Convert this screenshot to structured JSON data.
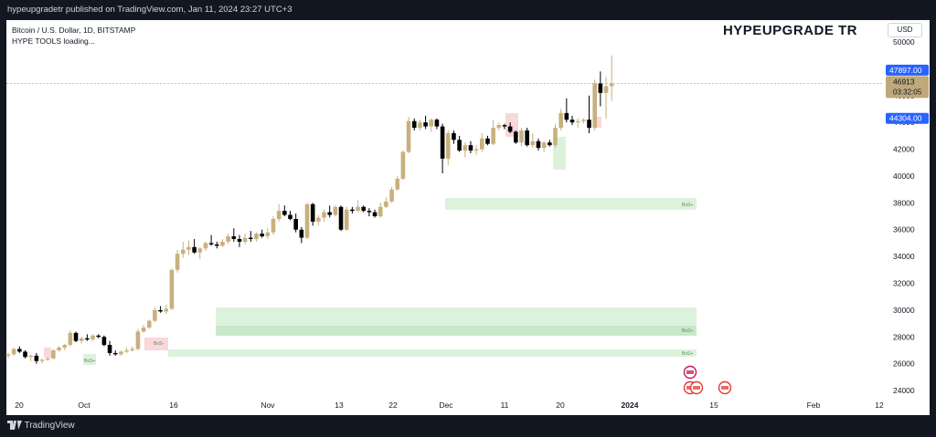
{
  "header": {
    "published": "hypeupgradetr published on TradingView.com, Jan 11, 2024 23:27 UTC+3"
  },
  "legend": {
    "symbol": "Bitcoin / U.S. Dollar, 1D, BITSTAMP",
    "indicator": "HYPE TOOLS loading..."
  },
  "brand": "HYPEUPGRADE TR",
  "currency": "USD",
  "footer": {
    "logo_text": "TradingView"
  },
  "colors": {
    "up": "#c8b07e",
    "down": "#000000",
    "zone_green": "#d7f0d7",
    "zone_red": "#f9d0d3",
    "price_badge": "#bfa97a",
    "blue_badge": "#2962ff"
  },
  "chart_data": {
    "type": "candlestick",
    "ylim": [
      23500,
      51000
    ],
    "yticks": [
      "50000",
      "48000",
      "46000",
      "44000",
      "42000",
      "40000",
      "38000",
      "36000",
      "34000",
      "32000",
      "30000",
      "28000",
      "26000",
      "24000"
    ],
    "xticks": [
      "20",
      "Oct",
      "16",
      "Nov",
      "13",
      "22",
      "Dec",
      "11",
      "20",
      "2024",
      "15",
      "Feb",
      "12"
    ],
    "price_labels": [
      {
        "value": 47897,
        "text": "47897.00",
        "style": "blue"
      },
      {
        "value": 46913,
        "text": "46913",
        "sub": "03:32:05",
        "style": "gold"
      },
      {
        "value": 44304,
        "text": "44304.00",
        "style": "blue"
      }
    ],
    "zone_labels": [
      "BoS+",
      "BoS+",
      "BoS+",
      "BoS-",
      "BoS+"
    ],
    "series": [
      {
        "o": 26600,
        "h": 26800,
        "l": 26400,
        "c": 26700
      },
      {
        "o": 26700,
        "h": 27200,
        "l": 26600,
        "c": 27100
      },
      {
        "o": 27100,
        "h": 27300,
        "l": 26800,
        "c": 26900
      },
      {
        "o": 26900,
        "h": 27000,
        "l": 26400,
        "c": 26500
      },
      {
        "o": 26500,
        "h": 26700,
        "l": 26200,
        "c": 26600
      },
      {
        "o": 26600,
        "h": 26800,
        "l": 26000,
        "c": 26200
      },
      {
        "o": 26200,
        "h": 26400,
        "l": 26000,
        "c": 26300
      },
      {
        "o": 26300,
        "h": 26500,
        "l": 26200,
        "c": 26400
      },
      {
        "o": 26400,
        "h": 27100,
        "l": 26300,
        "c": 27000
      },
      {
        "o": 27000,
        "h": 27300,
        "l": 26900,
        "c": 27200
      },
      {
        "o": 27200,
        "h": 27500,
        "l": 27000,
        "c": 27400
      },
      {
        "o": 27400,
        "h": 28500,
        "l": 27300,
        "c": 28300
      },
      {
        "o": 28300,
        "h": 28400,
        "l": 27600,
        "c": 27700
      },
      {
        "o": 27700,
        "h": 28000,
        "l": 27500,
        "c": 27900
      },
      {
        "o": 27900,
        "h": 28200,
        "l": 27700,
        "c": 27800
      },
      {
        "o": 27800,
        "h": 28200,
        "l": 27700,
        "c": 28100
      },
      {
        "o": 28100,
        "h": 28200,
        "l": 27900,
        "c": 28000
      },
      {
        "o": 28000,
        "h": 28100,
        "l": 27300,
        "c": 27400
      },
      {
        "o": 27400,
        "h": 27700,
        "l": 26600,
        "c": 26800
      },
      {
        "o": 26800,
        "h": 27000,
        "l": 26600,
        "c": 26700
      },
      {
        "o": 26700,
        "h": 27000,
        "l": 26600,
        "c": 26900
      },
      {
        "o": 26900,
        "h": 27200,
        "l": 26800,
        "c": 27000
      },
      {
        "o": 27000,
        "h": 27300,
        "l": 26900,
        "c": 27100
      },
      {
        "o": 27100,
        "h": 28600,
        "l": 27000,
        "c": 28400
      },
      {
        "o": 28400,
        "h": 28900,
        "l": 28300,
        "c": 28700
      },
      {
        "o": 28700,
        "h": 29300,
        "l": 28600,
        "c": 29200
      },
      {
        "o": 29200,
        "h": 30200,
        "l": 29100,
        "c": 30000
      },
      {
        "o": 30000,
        "h": 30300,
        "l": 29800,
        "c": 29900
      },
      {
        "o": 29900,
        "h": 30400,
        "l": 29700,
        "c": 30100
      },
      {
        "o": 30100,
        "h": 33100,
        "l": 30000,
        "c": 33000
      },
      {
        "o": 33000,
        "h": 34500,
        "l": 32800,
        "c": 34200
      },
      {
        "o": 34200,
        "h": 35100,
        "l": 33900,
        "c": 34500
      },
      {
        "o": 34500,
        "h": 35200,
        "l": 34100,
        "c": 34700
      },
      {
        "o": 34700,
        "h": 35300,
        "l": 34200,
        "c": 34300
      },
      {
        "o": 34300,
        "h": 34700,
        "l": 33800,
        "c": 34600
      },
      {
        "o": 34600,
        "h": 35100,
        "l": 34400,
        "c": 35000
      },
      {
        "o": 35000,
        "h": 35600,
        "l": 34800,
        "c": 34900
      },
      {
        "o": 34900,
        "h": 35100,
        "l": 34600,
        "c": 34800
      },
      {
        "o": 34800,
        "h": 35300,
        "l": 34700,
        "c": 35100
      },
      {
        "o": 35100,
        "h": 35700,
        "l": 34900,
        "c": 35500
      },
      {
        "o": 35500,
        "h": 36100,
        "l": 35100,
        "c": 35300
      },
      {
        "o": 35300,
        "h": 35600,
        "l": 34700,
        "c": 35100
      },
      {
        "o": 35100,
        "h": 35700,
        "l": 34900,
        "c": 35400
      },
      {
        "o": 35400,
        "h": 35900,
        "l": 35100,
        "c": 35300
      },
      {
        "o": 35300,
        "h": 35800,
        "l": 35100,
        "c": 35700
      },
      {
        "o": 35700,
        "h": 36000,
        "l": 35400,
        "c": 35500
      },
      {
        "o": 35500,
        "h": 36100,
        "l": 35300,
        "c": 35800
      },
      {
        "o": 35800,
        "h": 37000,
        "l": 35600,
        "c": 36800
      },
      {
        "o": 36800,
        "h": 37900,
        "l": 36600,
        "c": 37400
      },
      {
        "o": 37400,
        "h": 37800,
        "l": 37000,
        "c": 37100
      },
      {
        "o": 37100,
        "h": 37400,
        "l": 36700,
        "c": 36800
      },
      {
        "o": 36800,
        "h": 37200,
        "l": 35800,
        "c": 36000
      },
      {
        "o": 36000,
        "h": 36200,
        "l": 35000,
        "c": 35400
      },
      {
        "o": 35400,
        "h": 38000,
        "l": 35300,
        "c": 37900
      },
      {
        "o": 37900,
        "h": 38000,
        "l": 36300,
        "c": 36600
      },
      {
        "o": 36600,
        "h": 37100,
        "l": 36300,
        "c": 36900
      },
      {
        "o": 36900,
        "h": 37500,
        "l": 36600,
        "c": 37300
      },
      {
        "o": 37300,
        "h": 37800,
        "l": 36900,
        "c": 37100
      },
      {
        "o": 37100,
        "h": 37800,
        "l": 37000,
        "c": 37700
      },
      {
        "o": 37700,
        "h": 37800,
        "l": 35900,
        "c": 36000
      },
      {
        "o": 36000,
        "h": 37700,
        "l": 35900,
        "c": 37500
      },
      {
        "o": 37500,
        "h": 37700,
        "l": 37200,
        "c": 37400
      },
      {
        "o": 37400,
        "h": 38200,
        "l": 37300,
        "c": 37700
      },
      {
        "o": 37700,
        "h": 37800,
        "l": 37300,
        "c": 37400
      },
      {
        "o": 37400,
        "h": 37600,
        "l": 37000,
        "c": 37300
      },
      {
        "o": 37300,
        "h": 37500,
        "l": 36900,
        "c": 37000
      },
      {
        "o": 37000,
        "h": 38000,
        "l": 36900,
        "c": 37700
      },
      {
        "o": 37700,
        "h": 38400,
        "l": 37600,
        "c": 38100
      },
      {
        "o": 38100,
        "h": 39200,
        "l": 38000,
        "c": 39000
      },
      {
        "o": 39000,
        "h": 40000,
        "l": 38900,
        "c": 39800
      },
      {
        "o": 39800,
        "h": 41900,
        "l": 39700,
        "c": 41800
      },
      {
        "o": 41800,
        "h": 44400,
        "l": 41700,
        "c": 44100
      },
      {
        "o": 44100,
        "h": 44300,
        "l": 43400,
        "c": 43600
      },
      {
        "o": 43600,
        "h": 44200,
        "l": 43400,
        "c": 44000
      },
      {
        "o": 44000,
        "h": 44500,
        "l": 43500,
        "c": 43700
      },
      {
        "o": 43700,
        "h": 44300,
        "l": 43300,
        "c": 44200
      },
      {
        "o": 44200,
        "h": 44300,
        "l": 43500,
        "c": 43700
      },
      {
        "o": 43700,
        "h": 43900,
        "l": 40200,
        "c": 41300
      },
      {
        "o": 41300,
        "h": 43400,
        "l": 40800,
        "c": 43200
      },
      {
        "o": 43200,
        "h": 43400,
        "l": 42400,
        "c": 42700
      },
      {
        "o": 42700,
        "h": 43000,
        "l": 41800,
        "c": 41900
      },
      {
        "o": 41900,
        "h": 42500,
        "l": 41400,
        "c": 42300
      },
      {
        "o": 42300,
        "h": 42600,
        "l": 41700,
        "c": 41900
      },
      {
        "o": 41900,
        "h": 42300,
        "l": 41600,
        "c": 42000
      },
      {
        "o": 42000,
        "h": 43200,
        "l": 41800,
        "c": 42800
      },
      {
        "o": 42800,
        "h": 43000,
        "l": 42300,
        "c": 42400
      },
      {
        "o": 42400,
        "h": 44200,
        "l": 42300,
        "c": 43600
      },
      {
        "o": 43600,
        "h": 44000,
        "l": 43400,
        "c": 43800
      },
      {
        "o": 43800,
        "h": 43900,
        "l": 43500,
        "c": 43700
      },
      {
        "o": 43700,
        "h": 44000,
        "l": 43200,
        "c": 43300
      },
      {
        "o": 43300,
        "h": 43400,
        "l": 42400,
        "c": 42500
      },
      {
        "o": 42500,
        "h": 43600,
        "l": 42200,
        "c": 43400
      },
      {
        "o": 43400,
        "h": 43600,
        "l": 42200,
        "c": 42300
      },
      {
        "o": 42300,
        "h": 43200,
        "l": 42100,
        "c": 42600
      },
      {
        "o": 42600,
        "h": 42800,
        "l": 41900,
        "c": 42100
      },
      {
        "o": 42100,
        "h": 42600,
        "l": 41800,
        "c": 42500
      },
      {
        "o": 42500,
        "h": 42700,
        "l": 42200,
        "c": 42300
      },
      {
        "o": 42300,
        "h": 43900,
        "l": 42100,
        "c": 43600
      },
      {
        "o": 43600,
        "h": 45000,
        "l": 43400,
        "c": 44700
      },
      {
        "o": 44700,
        "h": 45800,
        "l": 44000,
        "c": 44200
      },
      {
        "o": 44200,
        "h": 44500,
        "l": 43800,
        "c": 44000
      },
      {
        "o": 44000,
        "h": 44300,
        "l": 43600,
        "c": 44100
      },
      {
        "o": 44100,
        "h": 44300,
        "l": 43900,
        "c": 44200
      },
      {
        "o": 44200,
        "h": 46000,
        "l": 43200,
        "c": 43600
      },
      {
        "o": 43600,
        "h": 47200,
        "l": 43400,
        "c": 46900
      },
      {
        "o": 46900,
        "h": 47800,
        "l": 45200,
        "c": 46200
      },
      {
        "o": 46200,
        "h": 47400,
        "l": 44300,
        "c": 46700
      },
      {
        "o": 46700,
        "h": 49000,
        "l": 45600,
        "c": 46900
      }
    ]
  }
}
